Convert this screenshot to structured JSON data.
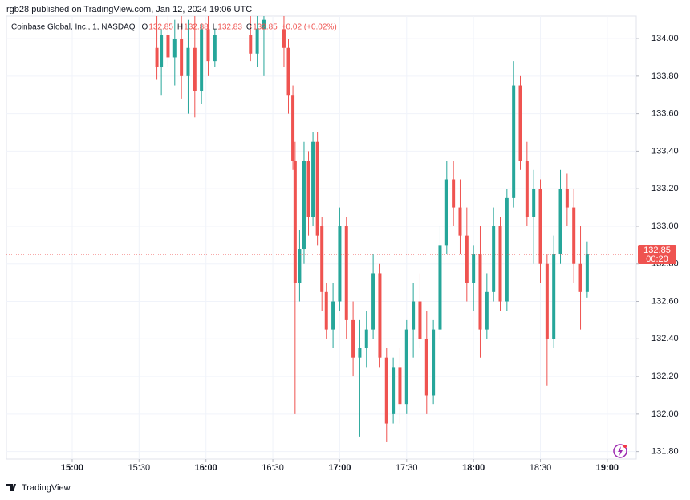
{
  "header": "rgb28 published on TradingView.com, Jan 12, 2024 19:06 UTC",
  "footer": "TradingView",
  "chart_data": {
    "type": "candlestick",
    "title": "Coinbase Global, Inc., 1, NASDAQ",
    "ohlc_legend": [
      {
        "label": "O",
        "value": 132.85
      },
      {
        "label": "H",
        "value": 132.88
      },
      {
        "label": "L",
        "value": 132.83
      },
      {
        "label": "C",
        "value": 132.85
      }
    ],
    "change": "+0.02 (+0.02%)",
    "last_price": 132.85,
    "countdown": "00:20",
    "up_color": "#26a69a",
    "down_color": "#ef5350",
    "x": [
      938,
      940,
      943,
      946,
      949,
      952,
      955,
      958,
      961,
      964,
      980,
      983,
      986,
      995,
      997,
      999,
      1000,
      1002,
      1004,
      1006,
      1008,
      1010,
      1012,
      1014,
      1017,
      1020,
      1023,
      1026,
      1029,
      1032,
      1035,
      1038,
      1041,
      1044,
      1047,
      1050,
      1053,
      1056,
      1059,
      1062,
      1065,
      1068,
      1071,
      1074,
      1077,
      1080,
      1083,
      1086,
      1089,
      1092,
      1095,
      1098,
      1101,
      1104,
      1107,
      1110,
      1113,
      1116,
      1119,
      1122,
      1125,
      1128,
      1131
    ],
    "open": [
      133.95,
      133.85,
      134.02,
      133.9,
      134.0,
      133.8,
      133.95,
      133.72,
      134.05,
      133.88,
      134.02,
      133.92,
      134.05,
      134.05,
      133.95,
      133.7,
      133.35,
      132.7,
      132.88,
      133.35,
      133.05,
      133.45,
      133.0,
      132.65,
      132.45,
      132.6,
      133.0,
      132.5,
      132.3,
      132.35,
      132.45,
      132.75,
      132.3,
      132.0,
      132.25,
      132.05,
      132.45,
      132.6,
      132.4,
      132.1,
      132.45,
      132.9,
      133.25,
      133.1,
      132.95,
      132.7,
      132.85,
      132.45,
      132.65,
      133.0,
      132.6,
      133.15,
      133.75,
      133.35,
      133.05,
      133.2,
      132.8,
      132.4,
      132.85,
      133.2,
      133.1,
      132.8,
      132.65
    ],
    "high": [
      134.12,
      134.05,
      134.12,
      134.1,
      134.12,
      134.1,
      134.12,
      134.08,
      134.12,
      134.05,
      134.12,
      134.12,
      134.12,
      134.12,
      134.0,
      133.75,
      133.45,
      132.98,
      133.45,
      133.4,
      133.5,
      133.5,
      133.05,
      132.7,
      132.7,
      133.1,
      133.05,
      132.6,
      132.5,
      132.55,
      132.85,
      132.8,
      132.35,
      132.3,
      132.35,
      132.5,
      132.7,
      132.75,
      132.55,
      132.5,
      133.0,
      133.35,
      133.35,
      133.25,
      133.1,
      132.9,
      133.0,
      132.75,
      133.1,
      133.05,
      133.2,
      133.88,
      133.8,
      133.45,
      133.3,
      133.25,
      132.85,
      132.95,
      133.3,
      133.28,
      133.2,
      133.0,
      132.92
    ],
    "low": [
      133.78,
      133.7,
      133.85,
      133.75,
      133.68,
      133.6,
      133.58,
      133.65,
      133.8,
      133.85,
      133.88,
      133.85,
      133.8,
      133.85,
      133.6,
      133.3,
      132.0,
      132.6,
      132.8,
      132.95,
      133.0,
      132.9,
      132.55,
      132.4,
      132.35,
      132.55,
      132.4,
      132.2,
      131.88,
      132.25,
      132.4,
      132.25,
      131.85,
      131.95,
      131.95,
      132.0,
      132.3,
      132.35,
      132.0,
      132.05,
      132.4,
      132.85,
      133.0,
      132.85,
      132.6,
      132.55,
      132.3,
      132.4,
      132.6,
      132.55,
      132.55,
      133.1,
      133.3,
      133.0,
      132.8,
      132.7,
      132.15,
      132.35,
      132.8,
      133.0,
      132.7,
      132.45,
      132.62
    ],
    "close": [
      133.85,
      134.02,
      133.9,
      134.0,
      133.8,
      133.95,
      133.72,
      134.05,
      133.88,
      134.02,
      133.92,
      134.05,
      134.1,
      133.95,
      133.7,
      133.35,
      132.7,
      132.88,
      133.35,
      133.05,
      133.45,
      132.95,
      132.65,
      132.45,
      132.6,
      133.0,
      132.5,
      132.3,
      132.35,
      132.45,
      132.75,
      132.3,
      131.95,
      132.25,
      132.05,
      132.45,
      132.6,
      132.4,
      132.1,
      132.45,
      132.9,
      133.25,
      133.1,
      132.95,
      132.7,
      132.85,
      132.45,
      132.65,
      133.0,
      132.6,
      133.15,
      133.75,
      133.35,
      133.05,
      133.2,
      132.8,
      132.4,
      132.85,
      133.2,
      133.1,
      132.8,
      132.65,
      132.85
    ],
    "xlim": [
      870.5,
      1153
    ],
    "xticks": [
      {
        "value": 900,
        "label": "15:00"
      },
      {
        "value": 930,
        "label": "15:30"
      },
      {
        "value": 960,
        "label": "16:00"
      },
      {
        "value": 990,
        "label": "16:30"
      },
      {
        "value": 1020,
        "label": "17:00"
      },
      {
        "value": 1050,
        "label": "17:30"
      },
      {
        "value": 1080,
        "label": "18:00"
      },
      {
        "value": 1110,
        "label": "18:30"
      },
      {
        "value": 1140,
        "label": "19:00"
      }
    ],
    "ylim": [
      131.76,
      134.12
    ],
    "yticks": [
      {
        "value": 134,
        "label": "134.00"
      },
      {
        "value": 133.8,
        "label": "133.80"
      },
      {
        "value": 133.6,
        "label": "133.60"
      },
      {
        "value": 133.4,
        "label": "133.40"
      },
      {
        "value": 133.2,
        "label": "133.20"
      },
      {
        "value": 133,
        "label": "133.00"
      },
      {
        "value": 132.8,
        "label": "132.80"
      },
      {
        "value": 132.6,
        "label": "132.60"
      },
      {
        "value": 132.4,
        "label": "132.40"
      },
      {
        "value": 132.2,
        "label": "132.20"
      },
      {
        "value": 132,
        "label": "132.00"
      },
      {
        "value": 131.8,
        "label": "131.80"
      }
    ],
    "grid": true
  }
}
